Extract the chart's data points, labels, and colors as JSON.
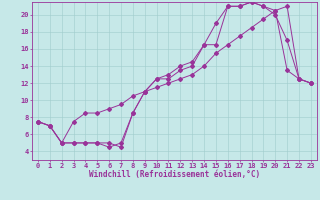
{
  "xlabel": "Windchill (Refroidissement éolien,°C)",
  "xlim": [
    -0.5,
    23.5
  ],
  "ylim": [
    3.0,
    21.5
  ],
  "xticks": [
    0,
    1,
    2,
    3,
    4,
    5,
    6,
    7,
    8,
    9,
    10,
    11,
    12,
    13,
    14,
    15,
    16,
    17,
    18,
    19,
    20,
    21,
    22,
    23
  ],
  "yticks": [
    4,
    6,
    8,
    10,
    12,
    14,
    16,
    18,
    20
  ],
  "bg_color": "#c6e8e8",
  "grid_color": "#a0cccc",
  "line_color": "#993399",
  "line1_x": [
    0,
    1,
    2,
    3,
    4,
    5,
    6,
    7,
    8,
    9,
    10,
    11,
    12,
    13,
    14,
    15,
    16,
    17,
    18,
    19,
    20,
    21,
    22,
    23
  ],
  "line1_y": [
    7.5,
    7.0,
    5.0,
    5.0,
    5.0,
    5.0,
    5.0,
    4.5,
    8.5,
    11.0,
    12.5,
    13.0,
    14.0,
    14.5,
    16.5,
    19.0,
    21.0,
    21.0,
    21.5,
    21.0,
    20.5,
    13.5,
    12.5,
    12.0
  ],
  "line2_x": [
    0,
    1,
    2,
    3,
    4,
    5,
    6,
    7,
    8,
    9,
    10,
    11,
    12,
    13,
    14,
    15,
    16,
    17,
    18,
    19,
    20,
    21,
    22,
    23
  ],
  "line2_y": [
    7.5,
    7.0,
    5.0,
    5.0,
    5.0,
    5.0,
    4.5,
    5.0,
    8.5,
    11.0,
    12.5,
    12.5,
    13.5,
    14.0,
    16.5,
    16.5,
    21.0,
    21.0,
    21.5,
    21.0,
    20.0,
    17.0,
    12.5,
    12.0
  ],
  "line3_x": [
    0,
    1,
    2,
    3,
    4,
    5,
    6,
    7,
    8,
    9,
    10,
    11,
    12,
    13,
    14,
    15,
    16,
    17,
    18,
    19,
    20,
    21,
    22,
    23
  ],
  "line3_y": [
    7.5,
    7.0,
    5.0,
    7.5,
    8.5,
    8.5,
    9.0,
    9.5,
    10.5,
    11.0,
    11.5,
    12.0,
    12.5,
    13.0,
    14.0,
    15.5,
    16.5,
    17.5,
    18.5,
    19.5,
    20.5,
    21.0,
    12.5,
    12.0
  ],
  "marker": "D",
  "markersize": 2.0,
  "linewidth": 0.7,
  "xlabel_fontsize": 5.5,
  "tick_fontsize": 5.0
}
